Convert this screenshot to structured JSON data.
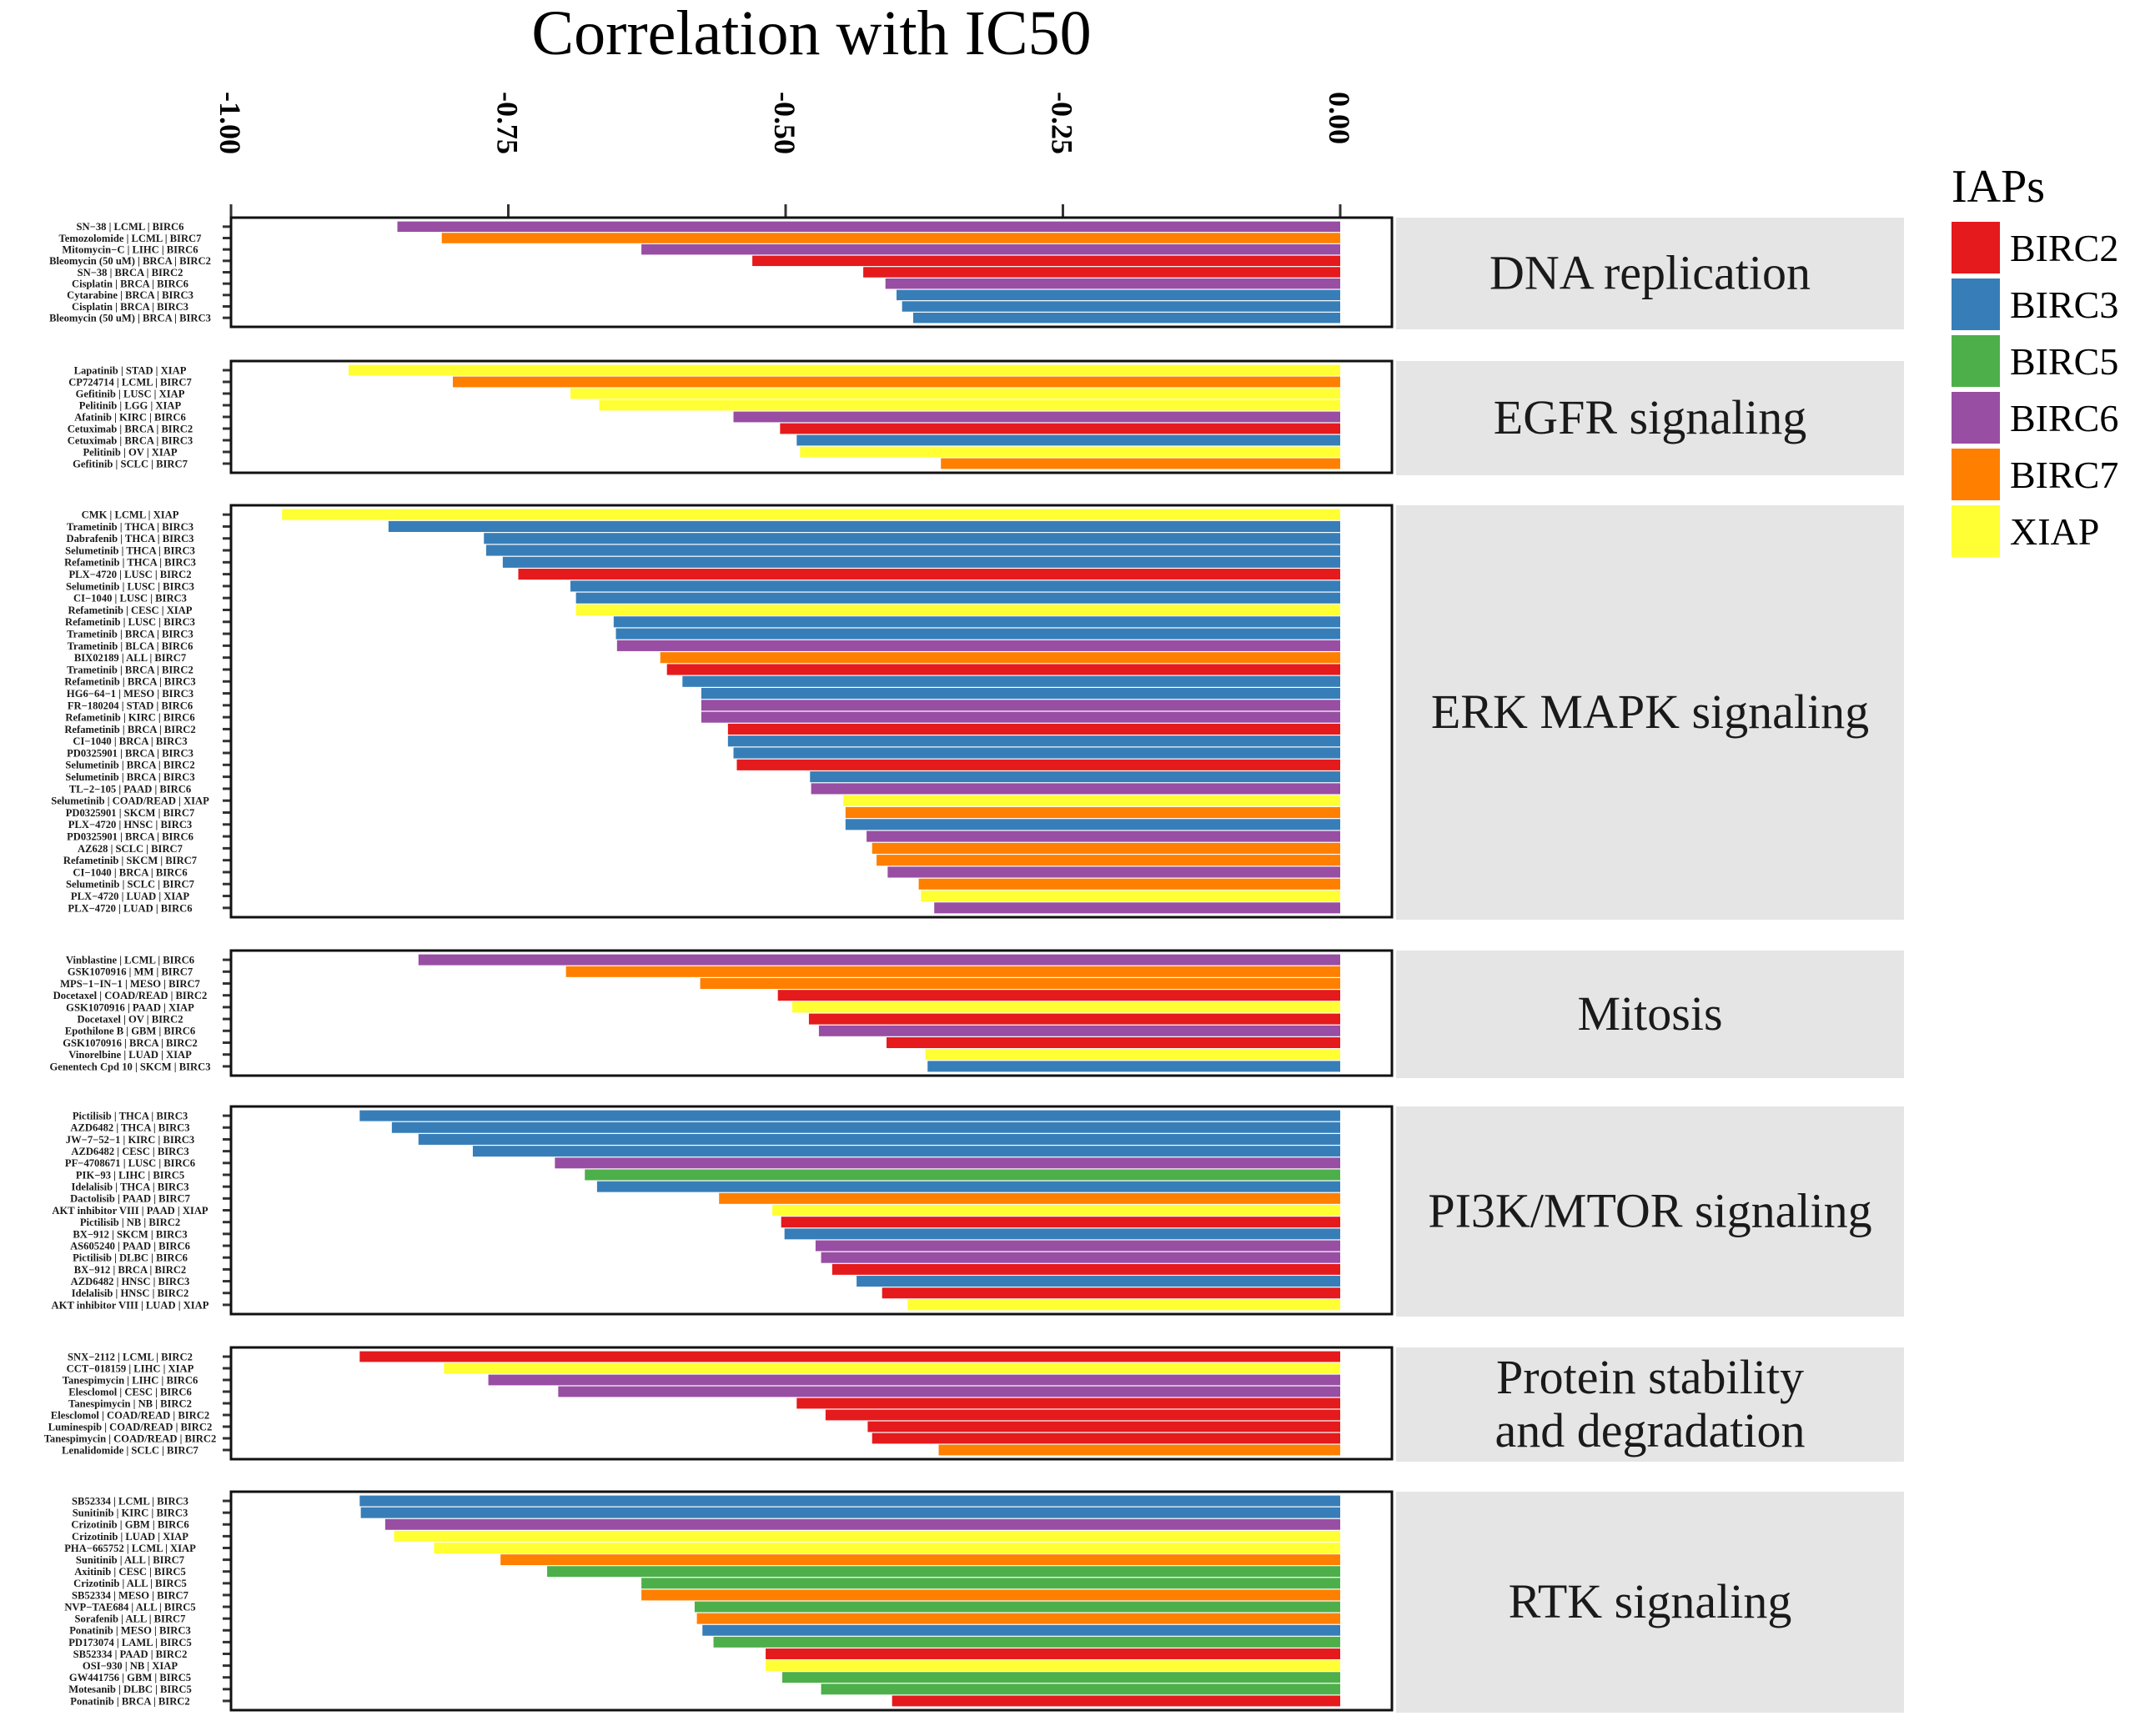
{
  "chart_data": {
    "type": "bar",
    "orientation": "horizontal",
    "title": "Correlation with IC50",
    "xlabel": "",
    "ylabel": "",
    "xlim": [
      -1.0,
      0.0
    ],
    "x_ticks": [
      -1.0,
      -0.75,
      -0.5,
      -0.25,
      0.0
    ],
    "x_tick_labels": [
      "-1.00",
      "-0.75",
      "-0.50",
      "-0.25",
      "0.00"
    ],
    "x_axis_position": "top",
    "grid": false,
    "legend": {
      "title": "IAPs",
      "position": "right",
      "entries": [
        {
          "name": "BIRC2",
          "color": "#E41A1C"
        },
        {
          "name": "BIRC3",
          "color": "#377EB8"
        },
        {
          "name": "BIRC5",
          "color": "#4DAF4A"
        },
        {
          "name": "BIRC6",
          "color": "#984EA3"
        },
        {
          "name": "BIRC7",
          "color": "#FF7F00"
        },
        {
          "name": "XIAP",
          "color": "#FFFF33"
        }
      ]
    },
    "facets": [
      {
        "name": "DNA replication",
        "rows": [
          {
            "label": "SN−38 | LCML | BIRC6",
            "iap": "BIRC6",
            "value": -0.85
          },
          {
            "label": "Temozolomide | LCML | BIRC7",
            "iap": "BIRC7",
            "value": -0.81
          },
          {
            "label": "Mitomycin−C | LIHC | BIRC6",
            "iap": "BIRC6",
            "value": -0.63
          },
          {
            "label": "Bleomycin (50 uM) | BRCA | BIRC2",
            "iap": "BIRC2",
            "value": -0.53
          },
          {
            "label": "SN−38 | BRCA | BIRC2",
            "iap": "BIRC2",
            "value": -0.43
          },
          {
            "label": "Cisplatin | BRCA | BIRC6",
            "iap": "BIRC6",
            "value": -0.41
          },
          {
            "label": "Cytarabine | BRCA | BIRC3",
            "iap": "BIRC3",
            "value": -0.4
          },
          {
            "label": "Cisplatin | BRCA | BIRC3",
            "iap": "BIRC3",
            "value": -0.395
          },
          {
            "label": "Bleomycin (50 uM) | BRCA | BIRC3",
            "iap": "BIRC3",
            "value": -0.385
          }
        ]
      },
      {
        "name": "EGFR signaling",
        "rows": [
          {
            "label": "Lapatinib | STAD | XIAP",
            "iap": "XIAP",
            "value": -0.894
          },
          {
            "label": "CP724714 | LCML | BIRC7",
            "iap": "BIRC7",
            "value": -0.8
          },
          {
            "label": "Gefitinib | LUSC | XIAP",
            "iap": "XIAP",
            "value": -0.694
          },
          {
            "label": "Pelitinib | LGG | XIAP",
            "iap": "XIAP",
            "value": -0.668
          },
          {
            "label": "Afatinib | KIRC | BIRC6",
            "iap": "BIRC6",
            "value": -0.547
          },
          {
            "label": "Cetuximab | BRCA | BIRC2",
            "iap": "BIRC2",
            "value": -0.505
          },
          {
            "label": "Cetuximab | BRCA | BIRC3",
            "iap": "BIRC3",
            "value": -0.49
          },
          {
            "label": "Pelitinib | OV | XIAP",
            "iap": "XIAP",
            "value": -0.487
          },
          {
            "label": "Gefitinib | SCLC | BIRC7",
            "iap": "BIRC7",
            "value": -0.36
          }
        ]
      },
      {
        "name": "ERK MAPK signaling",
        "rows": [
          {
            "label": "CMK | LCML | XIAP",
            "iap": "XIAP",
            "value": -0.954
          },
          {
            "label": "Trametinib | THCA | BIRC3",
            "iap": "BIRC3",
            "value": -0.858
          },
          {
            "label": "Dabrafenib | THCA | BIRC3",
            "iap": "BIRC3",
            "value": -0.772
          },
          {
            "label": "Selumetinib | THCA | BIRC3",
            "iap": "BIRC3",
            "value": -0.77
          },
          {
            "label": "Refametinib | THCA | BIRC3",
            "iap": "BIRC3",
            "value": -0.755
          },
          {
            "label": "PLX−4720 | LUSC | BIRC2",
            "iap": "BIRC2",
            "value": -0.741
          },
          {
            "label": "Selumetinib | LUSC | BIRC3",
            "iap": "BIRC3",
            "value": -0.694
          },
          {
            "label": "CI−1040 | LUSC | BIRC3",
            "iap": "BIRC3",
            "value": -0.689
          },
          {
            "label": "Refametinib | CESC | XIAP",
            "iap": "XIAP",
            "value": -0.689
          },
          {
            "label": "Refametinib | LUSC | BIRC3",
            "iap": "BIRC3",
            "value": -0.655
          },
          {
            "label": "Trametinib | BRCA | BIRC3",
            "iap": "BIRC3",
            "value": -0.653
          },
          {
            "label": "Trametinib | BLCA | BIRC6",
            "iap": "BIRC6",
            "value": -0.652
          },
          {
            "label": "BIX02189 | ALL | BIRC7",
            "iap": "BIRC7",
            "value": -0.613
          },
          {
            "label": "Trametinib | BRCA | BIRC2",
            "iap": "BIRC2",
            "value": -0.607
          },
          {
            "label": "Refametinib | BRCA | BIRC3",
            "iap": "BIRC3",
            "value": -0.593
          },
          {
            "label": "HG6−64−1 | MESO | BIRC3",
            "iap": "BIRC3",
            "value": -0.576
          },
          {
            "label": "FR−180204 | STAD | BIRC6",
            "iap": "BIRC6",
            "value": -0.576
          },
          {
            "label": "Refametinib | KIRC | BIRC6",
            "iap": "BIRC6",
            "value": -0.576
          },
          {
            "label": "Refametinib | BRCA | BIRC2",
            "iap": "BIRC2",
            "value": -0.552
          },
          {
            "label": "CI−1040 | BRCA | BIRC3",
            "iap": "BIRC3",
            "value": -0.552
          },
          {
            "label": "PD0325901 | BRCA | BIRC3",
            "iap": "BIRC3",
            "value": -0.547
          },
          {
            "label": "Selumetinib | BRCA | BIRC2",
            "iap": "BIRC2",
            "value": -0.544
          },
          {
            "label": "Selumetinib | BRCA | BIRC3",
            "iap": "BIRC3",
            "value": -0.478
          },
          {
            "label": "TL−2−105 | PAAD | BIRC6",
            "iap": "BIRC6",
            "value": -0.477
          },
          {
            "label": "Selumetinib | COAD/READ | XIAP",
            "iap": "XIAP",
            "value": -0.448
          },
          {
            "label": "PD0325901 | SKCM | BIRC7",
            "iap": "BIRC7",
            "value": -0.446
          },
          {
            "label": "PLX−4720 | HNSC | BIRC3",
            "iap": "BIRC3",
            "value": -0.446
          },
          {
            "label": "PD0325901 | BRCA | BIRC6",
            "iap": "BIRC6",
            "value": -0.427
          },
          {
            "label": "AZ628 | SCLC | BIRC7",
            "iap": "BIRC7",
            "value": -0.422
          },
          {
            "label": "Refametinib | SKCM | BIRC7",
            "iap": "BIRC7",
            "value": -0.418
          },
          {
            "label": "CI−1040 | BRCA | BIRC6",
            "iap": "BIRC6",
            "value": -0.408
          },
          {
            "label": "Selumetinib | SCLC | BIRC7",
            "iap": "BIRC7",
            "value": -0.38
          },
          {
            "label": "PLX−4720 | LUAD | XIAP",
            "iap": "XIAP",
            "value": -0.378
          },
          {
            "label": "PLX−4720 | LUAD | BIRC6",
            "iap": "BIRC6",
            "value": -0.366
          }
        ]
      },
      {
        "name": "Mitosis",
        "rows": [
          {
            "label": "Vinblastine | LCML | BIRC6",
            "iap": "BIRC6",
            "value": -0.831
          },
          {
            "label": "GSK1070916 | MM | BIRC7",
            "iap": "BIRC7",
            "value": -0.698
          },
          {
            "label": "MPS−1−IN−1 | MESO | BIRC7",
            "iap": "BIRC7",
            "value": -0.577
          },
          {
            "label": "Docetaxel | COAD/READ | BIRC2",
            "iap": "BIRC2",
            "value": -0.507
          },
          {
            "label": "GSK1070916 | PAAD | XIAP",
            "iap": "XIAP",
            "value": -0.494
          },
          {
            "label": "Docetaxel | OV | BIRC2",
            "iap": "BIRC2",
            "value": -0.479
          },
          {
            "label": "Epothilone B | GBM | BIRC6",
            "iap": "BIRC6",
            "value": -0.47
          },
          {
            "label": "GSK1070916 | BRCA | BIRC2",
            "iap": "BIRC2",
            "value": -0.409
          },
          {
            "label": "Vinorelbine | LUAD | XIAP",
            "iap": "XIAP",
            "value": -0.374
          },
          {
            "label": "Genentech Cpd 10 | SKCM | BIRC3",
            "iap": "BIRC3",
            "value": -0.372
          }
        ]
      },
      {
        "name": "PI3K/MTOR signaling",
        "rows": [
          {
            "label": "Pictilisib | THCA | BIRC3",
            "iap": "BIRC3",
            "value": -0.884
          },
          {
            "label": "AZD6482 | THCA | BIRC3",
            "iap": "BIRC3",
            "value": -0.855
          },
          {
            "label": "JW−7−52−1 | KIRC | BIRC3",
            "iap": "BIRC3",
            "value": -0.831
          },
          {
            "label": "AZD6482 | CESC | BIRC3",
            "iap": "BIRC3",
            "value": -0.782
          },
          {
            "label": "PF−4708671 | LUSC | BIRC6",
            "iap": "BIRC6",
            "value": -0.708
          },
          {
            "label": "PIK−93 | LIHC | BIRC5",
            "iap": "BIRC5",
            "value": -0.681
          },
          {
            "label": "Idelalisib | THCA | BIRC3",
            "iap": "BIRC3",
            "value": -0.67
          },
          {
            "label": "Dactolisib | PAAD | BIRC7",
            "iap": "BIRC7",
            "value": -0.56
          },
          {
            "label": "AKT inhibitor VIII | PAAD | XIAP",
            "iap": "XIAP",
            "value": -0.512
          },
          {
            "label": "Pictilisib | NB | BIRC2",
            "iap": "BIRC2",
            "value": -0.504
          },
          {
            "label": "BX−912 | SKCM | BIRC3",
            "iap": "BIRC3",
            "value": -0.501
          },
          {
            "label": "AS605240 | PAAD | BIRC6",
            "iap": "BIRC6",
            "value": -0.473
          },
          {
            "label": "Pictilisib | DLBC | BIRC6",
            "iap": "BIRC6",
            "value": -0.468
          },
          {
            "label": "BX−912 | BRCA | BIRC2",
            "iap": "BIRC2",
            "value": -0.458
          },
          {
            "label": "AZD6482 | HNSC | BIRC3",
            "iap": "BIRC3",
            "value": -0.436
          },
          {
            "label": "Idelalisib | HNSC | BIRC2",
            "iap": "BIRC2",
            "value": -0.413
          },
          {
            "label": "AKT inhibitor VIII | LUAD | XIAP",
            "iap": "XIAP",
            "value": -0.39
          }
        ]
      },
      {
        "name": "Protein stability\nand degradation",
        "rows": [
          {
            "label": "SNX−2112 | LCML | BIRC2",
            "iap": "BIRC2",
            "value": -0.884
          },
          {
            "label": "CCT−018159 | LIHC | XIAP",
            "iap": "XIAP",
            "value": -0.808
          },
          {
            "label": "Tanespimycin | LIHC | BIRC6",
            "iap": "BIRC6",
            "value": -0.768
          },
          {
            "label": "Elesclomol | CESC | BIRC6",
            "iap": "BIRC6",
            "value": -0.705
          },
          {
            "label": "Tanespimycin | NB | BIRC2",
            "iap": "BIRC2",
            "value": -0.49
          },
          {
            "label": "Elesclomol | COAD/READ | BIRC2",
            "iap": "BIRC2",
            "value": -0.464
          },
          {
            "label": "Luminespib | COAD/READ | BIRC2",
            "iap": "BIRC2",
            "value": -0.426
          },
          {
            "label": "Tanespimycin | COAD/READ | BIRC2",
            "iap": "BIRC2",
            "value": -0.422
          },
          {
            "label": "Lenalidomide | SCLC | BIRC7",
            "iap": "BIRC7",
            "value": -0.362
          }
        ]
      },
      {
        "name": "RTK signaling",
        "rows": [
          {
            "label": "SB52334 | LCML | BIRC3",
            "iap": "BIRC3",
            "value": -0.884
          },
          {
            "label": "Sunitinib | KIRC | BIRC3",
            "iap": "BIRC3",
            "value": -0.883
          },
          {
            "label": "Crizotinib | GBM | BIRC6",
            "iap": "BIRC6",
            "value": -0.861
          },
          {
            "label": "Crizotinib | LUAD | XIAP",
            "iap": "XIAP",
            "value": -0.853
          },
          {
            "label": "PHA−665752 | LCML | XIAP",
            "iap": "XIAP",
            "value": -0.817
          },
          {
            "label": "Sunitinib | ALL | BIRC7",
            "iap": "BIRC7",
            "value": -0.757
          },
          {
            "label": "Axitinib | CESC | BIRC5",
            "iap": "BIRC5",
            "value": -0.715
          },
          {
            "label": "Crizotinib | ALL | BIRC5",
            "iap": "BIRC5",
            "value": -0.63
          },
          {
            "label": "SB52334 | MESO | BIRC7",
            "iap": "BIRC7",
            "value": -0.63
          },
          {
            "label": "NVP−TAE684 | ALL | BIRC5",
            "iap": "BIRC5",
            "value": -0.582
          },
          {
            "label": "Sorafenib | ALL | BIRC7",
            "iap": "BIRC7",
            "value": -0.58
          },
          {
            "label": "Ponatinib | MESO | BIRC3",
            "iap": "BIRC3",
            "value": -0.575
          },
          {
            "label": "PD173074 | LAML | BIRC5",
            "iap": "BIRC5",
            "value": -0.565
          },
          {
            "label": "SB52334 | PAAD | BIRC2",
            "iap": "BIRC2",
            "value": -0.518
          },
          {
            "label": "OSI−930 | NB | XIAP",
            "iap": "XIAP",
            "value": -0.518
          },
          {
            "label": "GW441756 | GBM | BIRC5",
            "iap": "BIRC5",
            "value": -0.503
          },
          {
            "label": "Motesanib | DLBC | BIRC5",
            "iap": "BIRC5",
            "value": -0.468
          },
          {
            "label": "Ponatinib | BRCA | BIRC2",
            "iap": "BIRC2",
            "value": -0.404
          }
        ]
      }
    ]
  }
}
